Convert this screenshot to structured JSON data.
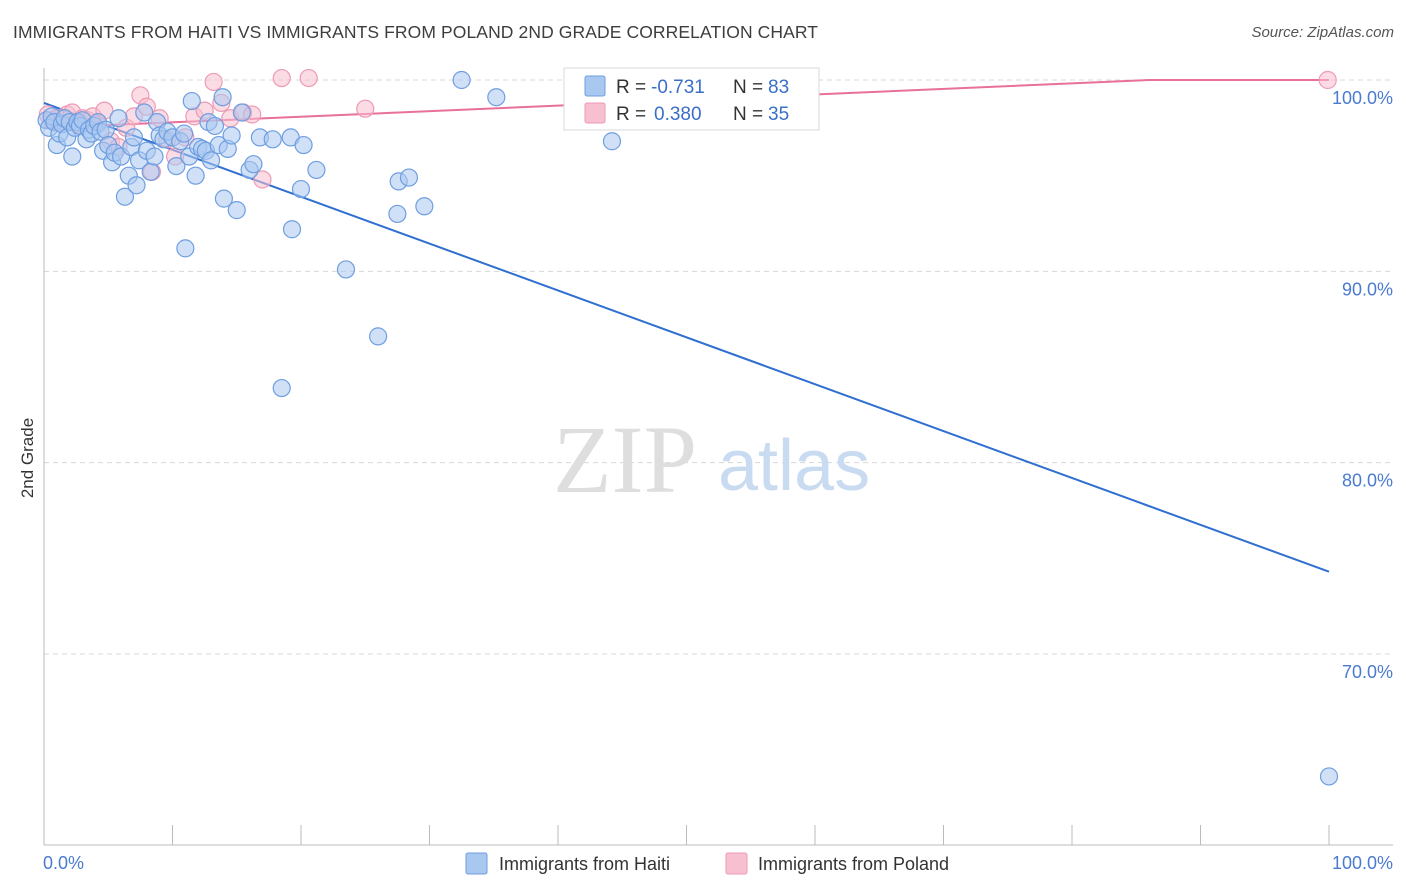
{
  "header": {
    "title": "IMMIGRANTS FROM HAITI VS IMMIGRANTS FROM POLAND 2ND GRADE CORRELATION CHART",
    "source": "Source: ZipAtlas.com"
  },
  "watermark": {
    "zip": "ZIP",
    "atlas": "atlas"
  },
  "legend": {
    "haiti": {
      "r_label": "R =",
      "r_value": "-0.731",
      "n_label": "N =",
      "n_value": "83"
    },
    "poland": {
      "r_label": "R =",
      "r_value": "0.380",
      "n_label": "N =",
      "n_value": "35"
    }
  },
  "colors": {
    "haiti_fill": "#a9c8f0",
    "haiti_stroke": "#6f9ee0",
    "haiti_line": "#2f6fd0",
    "poland_fill": "#f7c0d0",
    "poland_stroke": "#ee9ab5",
    "poland_line": "#e8709a",
    "tick_text": "#4a7bd0",
    "grid": "#d8d8d8"
  },
  "chart_data": {
    "type": "scatter",
    "title": "IMMIGRANTS FROM HAITI VS IMMIGRANTS FROM POLAND 2ND GRADE CORRELATION CHART",
    "xlabel": "",
    "ylabel": "2nd Grade",
    "xlim": [
      0,
      100
    ],
    "ylim": [
      60.5,
      101.5
    ],
    "x_tick_labels": [
      "0.0%",
      "100.0%"
    ],
    "y_ticks": [
      {
        "value": 100,
        "label": "100.0%"
      },
      {
        "value": 90,
        "label": "90.0%"
      },
      {
        "value": 80,
        "label": "80.0%"
      },
      {
        "value": 70,
        "label": "70.0%"
      }
    ],
    "series": [
      {
        "name": "Immigrants from Haiti",
        "r": -0.731,
        "n": 83,
        "trend": {
          "x": [
            0,
            100
          ],
          "y": [
            98.8,
            74.3
          ]
        },
        "points": [
          [
            0.2,
            97.9
          ],
          [
            0.4,
            97.5
          ],
          [
            0.6,
            98.1
          ],
          [
            0.8,
            97.8
          ],
          [
            1.0,
            96.6
          ],
          [
            1.2,
            97.2
          ],
          [
            1.4,
            97.7
          ],
          [
            1.6,
            98.0
          ],
          [
            1.8,
            97.0
          ],
          [
            2.0,
            97.8
          ],
          [
            2.2,
            96.0
          ],
          [
            2.4,
            97.5
          ],
          [
            2.6,
            97.8
          ],
          [
            2.8,
            97.6
          ],
          [
            3.0,
            97.9
          ],
          [
            3.3,
            96.9
          ],
          [
            3.5,
            97.4
          ],
          [
            3.7,
            97.2
          ],
          [
            3.9,
            97.6
          ],
          [
            4.2,
            97.8
          ],
          [
            4.4,
            97.3
          ],
          [
            4.6,
            96.3
          ],
          [
            4.8,
            97.4
          ],
          [
            5.0,
            96.6
          ],
          [
            5.3,
            95.7
          ],
          [
            5.5,
            96.2
          ],
          [
            5.8,
            98.0
          ],
          [
            6.0,
            96.0
          ],
          [
            6.3,
            93.9
          ],
          [
            6.6,
            95.0
          ],
          [
            6.8,
            96.5
          ],
          [
            7.0,
            97.0
          ],
          [
            7.2,
            94.5
          ],
          [
            7.4,
            95.8
          ],
          [
            7.8,
            98.3
          ],
          [
            8.0,
            96.3
          ],
          [
            8.3,
            95.2
          ],
          [
            8.6,
            96.0
          ],
          [
            8.8,
            97.8
          ],
          [
            9.0,
            97.1
          ],
          [
            9.3,
            96.9
          ],
          [
            9.6,
            97.3
          ],
          [
            10.0,
            97.0
          ],
          [
            10.3,
            95.5
          ],
          [
            10.6,
            96.8
          ],
          [
            10.9,
            97.2
          ],
          [
            11.0,
            91.2
          ],
          [
            11.3,
            96.0
          ],
          [
            11.5,
            98.9
          ],
          [
            11.8,
            95.0
          ],
          [
            12.0,
            96.5
          ],
          [
            12.3,
            96.4
          ],
          [
            12.6,
            96.3
          ],
          [
            12.8,
            97.8
          ],
          [
            13.0,
            95.8
          ],
          [
            13.3,
            97.6
          ],
          [
            13.6,
            96.6
          ],
          [
            13.9,
            99.1
          ],
          [
            14.0,
            93.8
          ],
          [
            14.3,
            96.4
          ],
          [
            14.6,
            97.1
          ],
          [
            15.0,
            93.2
          ],
          [
            15.4,
            98.3
          ],
          [
            16.0,
            95.3
          ],
          [
            16.3,
            95.6
          ],
          [
            16.8,
            97.0
          ],
          [
            17.8,
            96.9
          ],
          [
            18.5,
            83.9
          ],
          [
            19.2,
            97.0
          ],
          [
            19.3,
            92.2
          ],
          [
            20.0,
            94.3
          ],
          [
            20.2,
            96.6
          ],
          [
            21.2,
            95.3
          ],
          [
            23.5,
            90.1
          ],
          [
            26.0,
            86.6
          ],
          [
            27.5,
            93.0
          ],
          [
            27.6,
            94.7
          ],
          [
            28.4,
            94.9
          ],
          [
            29.6,
            93.4
          ],
          [
            32.5,
            100.0
          ],
          [
            35.2,
            99.1
          ],
          [
            44.2,
            96.8
          ],
          [
            100.0,
            63.6
          ]
        ]
      },
      {
        "name": "Immigrants from Poland",
        "r": 0.38,
        "n": 35,
        "trend": {
          "x": [
            0,
            86,
            100
          ],
          "y": [
            97.5,
            100.0,
            100.0
          ]
        },
        "points": [
          [
            0.3,
            98.2
          ],
          [
            0.6,
            97.9
          ],
          [
            1.0,
            98.0
          ],
          [
            1.4,
            97.8
          ],
          [
            1.8,
            98.2
          ],
          [
            2.2,
            98.3
          ],
          [
            2.6,
            97.7
          ],
          [
            3.0,
            98.0
          ],
          [
            3.4,
            97.9
          ],
          [
            3.8,
            98.1
          ],
          [
            4.2,
            97.7
          ],
          [
            4.7,
            98.4
          ],
          [
            5.2,
            96.8
          ],
          [
            5.8,
            96.5
          ],
          [
            6.4,
            97.5
          ],
          [
            7.0,
            98.1
          ],
          [
            7.5,
            99.2
          ],
          [
            8.0,
            98.6
          ],
          [
            8.4,
            95.2
          ],
          [
            9.0,
            98.0
          ],
          [
            9.6,
            96.9
          ],
          [
            10.2,
            96.0
          ],
          [
            11.0,
            97.0
          ],
          [
            11.7,
            98.1
          ],
          [
            12.5,
            98.4
          ],
          [
            13.2,
            99.9
          ],
          [
            13.8,
            98.8
          ],
          [
            14.5,
            98.0
          ],
          [
            15.5,
            98.3
          ],
          [
            16.2,
            98.2
          ],
          [
            17.0,
            94.8
          ],
          [
            18.5,
            100.1
          ],
          [
            20.6,
            100.1
          ],
          [
            25.0,
            98.5
          ],
          [
            99.9,
            100.0
          ]
        ]
      }
    ]
  }
}
